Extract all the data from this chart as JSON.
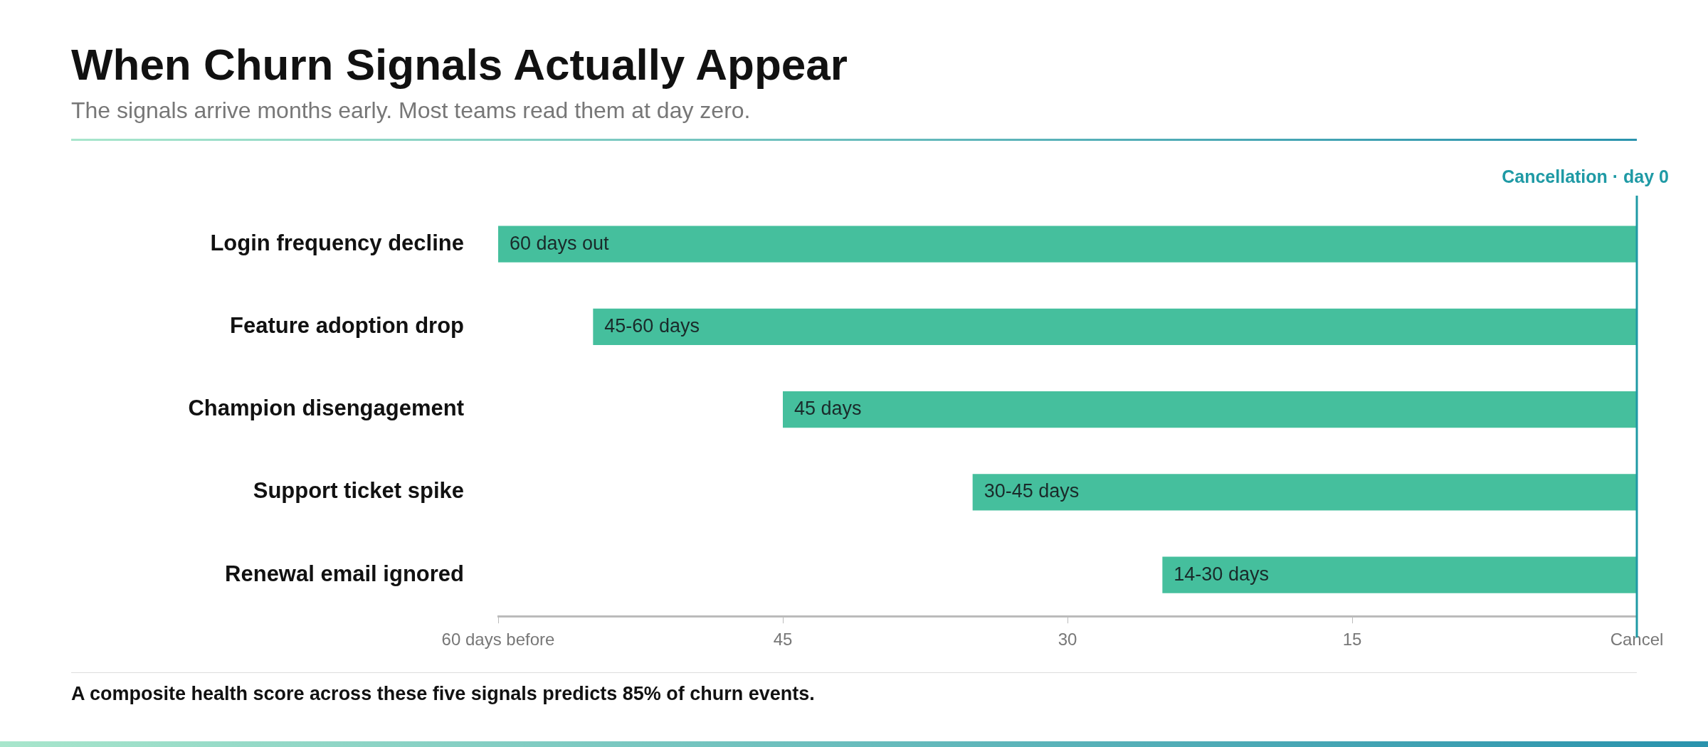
{
  "chart_data": {
    "type": "bar",
    "orientation": "horizontal",
    "title": "When Churn Signals Actually Appear",
    "subtitle": "The signals arrive months early. Most teams read them at day zero.",
    "categories": [
      "Login frequency decline",
      "Feature adoption drop",
      "Champion disengagement",
      "Support ticket spike",
      "Renewal email ignored"
    ],
    "base": [
      0,
      0,
      0,
      0,
      0
    ],
    "values": [
      60,
      55,
      45,
      35,
      25
    ],
    "value_labels": [
      "60 days out",
      "45-60 days",
      "45 days",
      "30-45 days",
      "14-30 days"
    ],
    "color": "#45bf9d",
    "xlim": [
      60,
      0
    ],
    "xticks": [
      {
        "value": 60,
        "label": "60 days before"
      },
      45,
      30,
      15,
      {
        "value": 0,
        "label": "Cancel"
      }
    ],
    "ref_lines": [
      {
        "axis": "x",
        "value": 0,
        "label": "Cancellation · day 0",
        "color": "#1f9aa5"
      }
    ],
    "grid": false,
    "legend": false,
    "annotations": [
      "A composite health score across these five signals predicts 85% of churn events."
    ]
  }
}
